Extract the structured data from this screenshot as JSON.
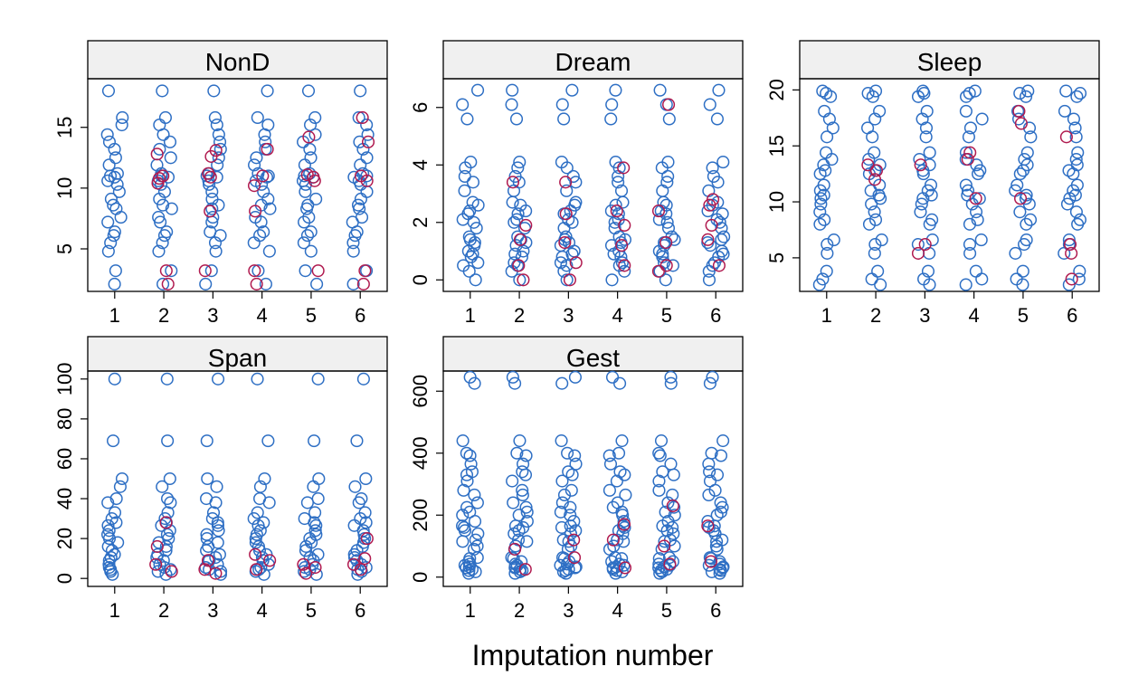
{
  "colors": {
    "observed": "#2e6fc4",
    "imputed": "#b01a4f"
  },
  "chart_data": {
    "type": "scatter",
    "xlabel": "Imputation number",
    "x_categories": [
      1,
      2,
      3,
      4,
      5,
      6
    ],
    "panels": [
      {
        "name": "NonD",
        "yticks": [
          5,
          10,
          15
        ],
        "ylim": [
          1.5,
          19
        ],
        "observed": [
          2.1,
          3.2,
          4.8,
          5.5,
          6.1,
          6.4,
          7.2,
          7.6,
          8.3,
          8.6,
          9.1,
          9.7,
          10.3,
          10.6,
          10.9,
          11.0,
          11.2,
          11.9,
          12.5,
          13.2,
          13.8,
          14.4,
          15.2,
          15.8,
          18.0
        ],
        "imputed": {
          "1": [],
          "2": [
            2.1,
            3.2,
            10.4,
            10.8,
            11.0,
            12.8
          ],
          "3": [
            3.2,
            8.1,
            10.9,
            11.2,
            12.6,
            13.1
          ],
          "4": [
            2.1,
            3.2,
            8.1,
            10.2,
            11.0,
            13.2
          ],
          "5": [
            3.2,
            10.6,
            10.9,
            11.1,
            14.2
          ],
          "6": [
            2.1,
            3.2,
            10.6,
            11.0,
            13.8,
            15.8
          ]
        }
      },
      {
        "name": "Dream",
        "yticks": [
          0,
          2,
          4,
          6
        ],
        "ylim": [
          -0.4,
          7.0
        ],
        "observed": [
          0.0,
          0.3,
          0.5,
          0.6,
          0.8,
          0.9,
          1.0,
          1.2,
          1.3,
          1.4,
          1.5,
          1.8,
          2.0,
          2.1,
          2.3,
          2.4,
          2.6,
          2.7,
          3.1,
          3.4,
          3.6,
          3.9,
          4.1,
          5.6,
          6.1,
          6.6
        ],
        "imputed": {
          "1": [],
          "2": [
            0.0,
            0.5,
            1.4,
            1.9,
            3.4
          ],
          "3": [
            0.0,
            0.6,
            1.3,
            2.3,
            3.4
          ],
          "4": [
            0.5,
            1.2,
            1.9,
            2.4,
            3.9
          ],
          "5": [
            0.3,
            0.5,
            1.3,
            2.4,
            6.1
          ],
          "6": [
            0.5,
            1.4,
            1.9,
            2.6,
            2.8
          ]
        }
      },
      {
        "name": "Sleep",
        "yticks": [
          5,
          10,
          15,
          20
        ],
        "ylim": [
          2.0,
          21.0
        ],
        "observed": [
          2.6,
          3.1,
          3.8,
          5.4,
          6.2,
          6.6,
          8.0,
          8.4,
          9.1,
          9.8,
          10.3,
          10.6,
          11.0,
          11.5,
          12.5,
          12.8,
          13.3,
          13.8,
          14.4,
          15.8,
          16.6,
          17.4,
          18.1,
          19.4,
          19.7,
          19.9
        ],
        "imputed": {
          "1": [],
          "2": [
            12.0,
            12.8,
            13.3
          ],
          "3": [
            5.4,
            6.2,
            13.3
          ],
          "4": [
            10.3,
            13.8,
            14.4
          ],
          "5": [
            10.3,
            17.0,
            18.1
          ],
          "6": [
            3.1,
            5.4,
            6.2,
            15.8
          ]
        }
      },
      {
        "name": "Span",
        "yticks": [
          0,
          20,
          40,
          60,
          80,
          100
        ],
        "ylim": [
          -4,
          104
        ],
        "observed": [
          2.0,
          3.5,
          4.5,
          5.5,
          7.0,
          9.0,
          10.5,
          12.0,
          14.0,
          16.0,
          18.0,
          20.0,
          22.0,
          24.0,
          26.5,
          28.0,
          30.0,
          33.0,
          38.0,
          40.0,
          46.0,
          50.0,
          69.0,
          100.0
        ],
        "imputed": {
          "1": [],
          "2": [
            3.5,
            7.0,
            16.0,
            28.0
          ],
          "3": [
            2.5,
            4.5,
            9.0
          ],
          "4": [
            4.5,
            9.0,
            12.0
          ],
          "5": [
            2.5,
            5.5,
            7.0
          ],
          "6": [
            4.5,
            7.0,
            10.0,
            20.0
          ]
        }
      },
      {
        "name": "Gest",
        "yticks": [
          0,
          200,
          400,
          600
        ],
        "ylim": [
          -30,
          665
        ],
        "observed": [
          12,
          17,
          21,
          25,
          30,
          33,
          38,
          42,
          50,
          60,
          63,
          90,
          100,
          115,
          120,
          140,
          150,
          160,
          165,
          180,
          200,
          210,
          225,
          240,
          265,
          280,
          310,
          330,
          340,
          365,
          392,
          400,
          440,
          625,
          645
        ],
        "imputed": {
          "1": [],
          "2": [
            25,
            90
          ],
          "3": [
            63,
            120
          ],
          "4": [
            30,
            120,
            170
          ],
          "5": [
            42,
            100,
            230
          ],
          "6": [
            50,
            165
          ]
        }
      }
    ]
  }
}
